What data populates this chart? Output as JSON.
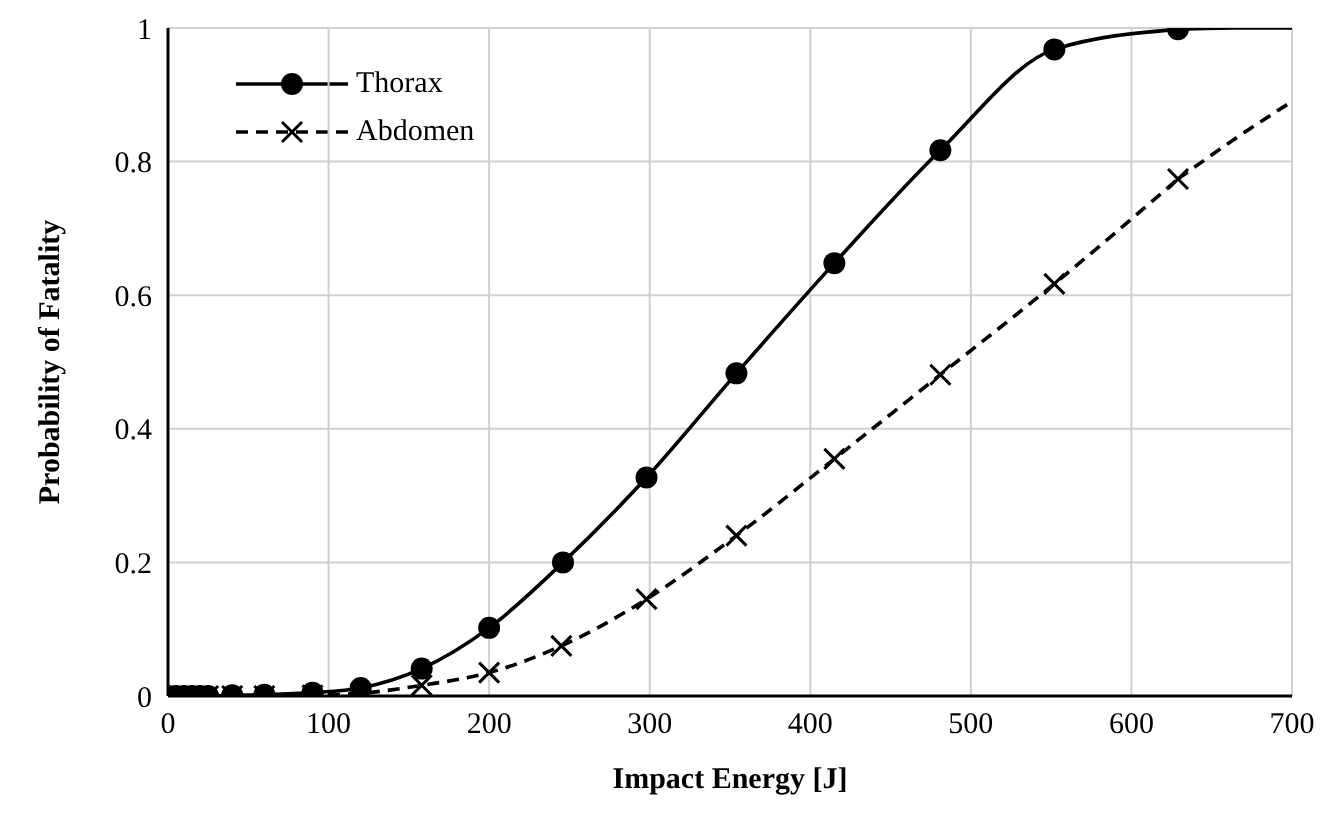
{
  "chart_data": {
    "type": "line",
    "xlabel": "Impact Energy [J]",
    "ylabel": "Probability of Fatality",
    "xlim": [
      0,
      700
    ],
    "xticks": [
      0,
      100,
      200,
      300,
      400,
      500,
      600,
      700
    ],
    "ylim": [
      0,
      1
    ],
    "yticks": [
      0,
      0.2,
      0.4,
      0.6,
      0.8,
      1
    ],
    "grid": true,
    "legend": "top left",
    "series": [
      {
        "name": "Thorax",
        "color": "#000000",
        "marker": "circle",
        "line_style": "solid",
        "x": [
          0,
          5,
          10,
          15,
          20,
          25,
          40,
          60,
          90,
          120,
          158,
          200,
          246,
          298,
          354,
          415,
          481,
          552,
          629
        ],
        "values": [
          0,
          0,
          0,
          0,
          0,
          0,
          0.001,
          0.002,
          0.005,
          0.012,
          0.041,
          0.102,
          0.2,
          0.327,
          0.483,
          0.648,
          0.817,
          0.968,
          0.998
        ]
      },
      {
        "name": "Abdomen",
        "color": "#000000",
        "marker": "cross",
        "line_style": "dashed",
        "x": [
          0,
          5,
          10,
          15,
          20,
          25,
          40,
          60,
          90,
          120,
          158,
          200,
          245,
          298,
          354,
          415,
          481,
          552,
          629
        ],
        "values": [
          0,
          0,
          0,
          0,
          0,
          0,
          0,
          0,
          0.001,
          0.004,
          0.016,
          0.035,
          0.075,
          0.145,
          0.24,
          0.355,
          0.481,
          0.617,
          0.774
        ]
      },
      {
        "color": "#000000",
        "marker": "none",
        "line_style": "solid",
        "x": [
          629,
          665,
          700
        ],
        "values": [
          0.998,
          1,
          1
        ]
      },
      {
        "color": "#000000",
        "marker": "none",
        "line_style": "dashed",
        "x": [
          629,
          665,
          700
        ],
        "values": [
          0.774,
          0.835,
          0.89
        ]
      }
    ]
  }
}
